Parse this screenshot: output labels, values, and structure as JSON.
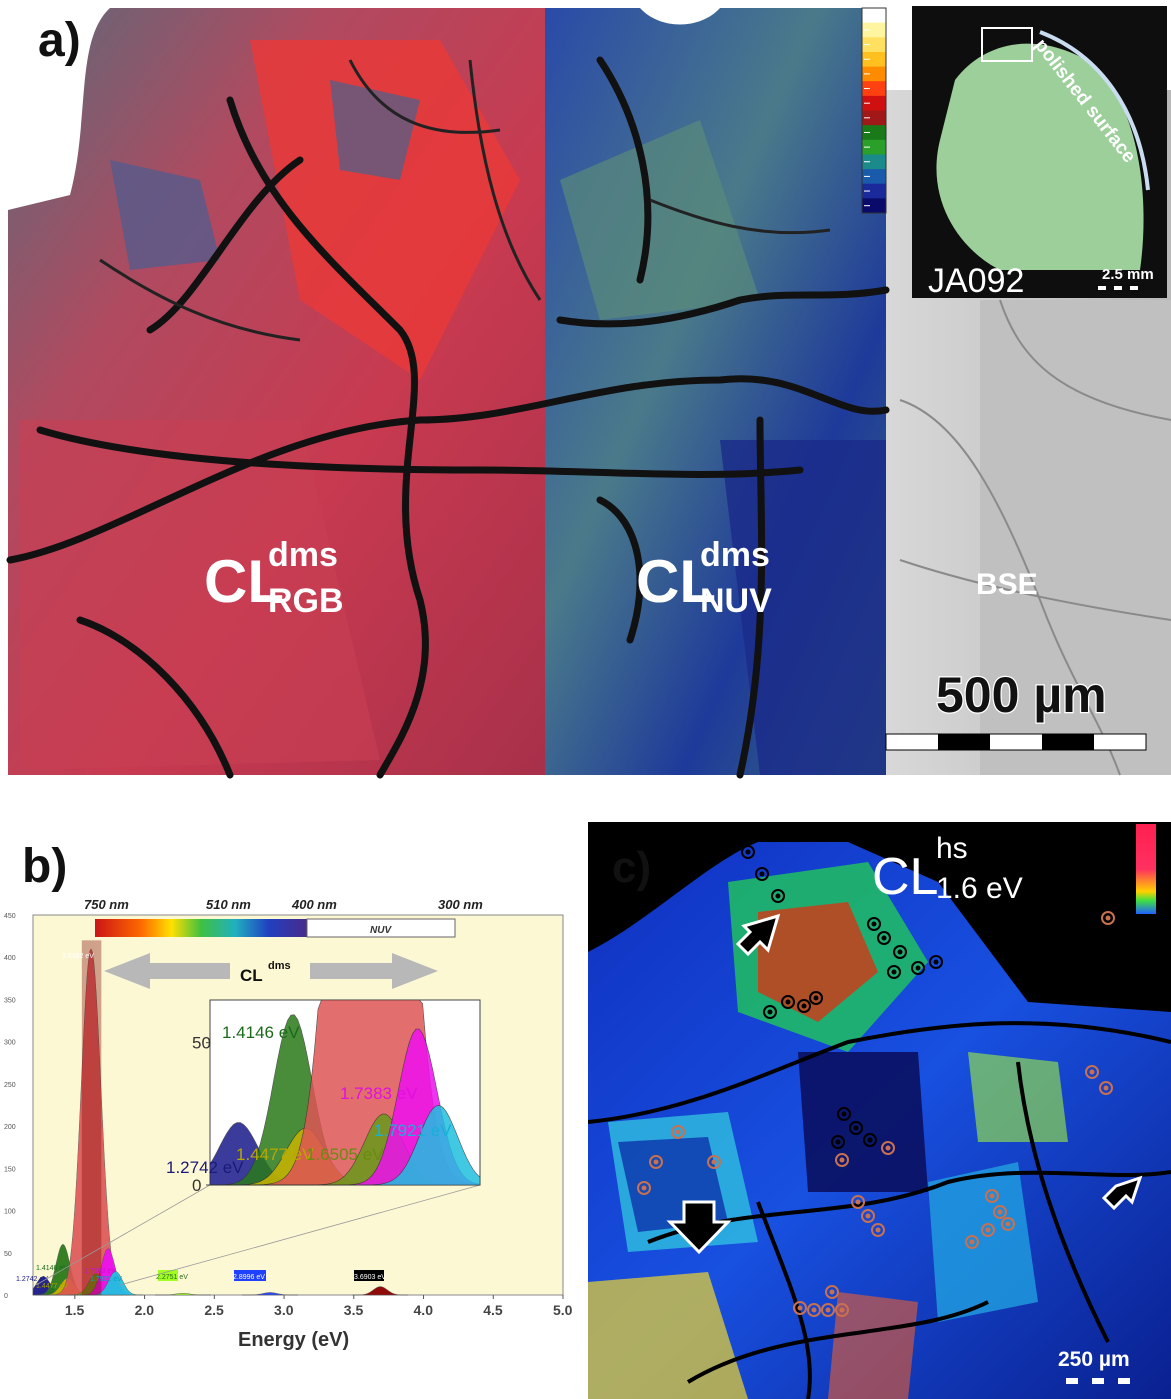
{
  "panel_a": {
    "letter": "a)",
    "cl_rgb": {
      "main": "CL",
      "sup": "dms",
      "sub": "RGB"
    },
    "cl_nuv": {
      "main": "CL",
      "sup": "dms",
      "sub": "NUV"
    },
    "bse_label": "BSE",
    "scale_label": "500 µm",
    "inset": {
      "sample": "JA092",
      "scale": "2.5 mm",
      "annotation": "polished surface"
    },
    "colorbar": [
      "#ffffff",
      "#fff5a0",
      "#ffe060",
      "#ffc020",
      "#ff8c00",
      "#ff4010",
      "#d01010",
      "#a01818",
      "#1a7a1a",
      "#2aa02a",
      "#1a8a8a",
      "#1a5aaa",
      "#1a2a9a",
      "#0a0a6a"
    ]
  },
  "panel_b": {
    "letter": "b)",
    "wavelength_labels": [
      "750 nm",
      "510 nm",
      "400 nm",
      "300 nm"
    ],
    "nuv_label": "NUV",
    "cl_main": "CL",
    "cl_sup": "dms",
    "inset_labels": [
      "1.4146 eV",
      "1.7383 eV",
      "1.7921 eV",
      "1.4477 eV",
      "1.6505 eV",
      "1.2742 eV"
    ],
    "main_peak_label": "1.6162 eV",
    "small_labels": [
      "1.4146 eV",
      "1.4477 eV",
      "1.2742 eV",
      "1.7383 eV",
      "1.7921 eV",
      "2.2751 eV",
      "2.8996 eV",
      "3.6903 eV"
    ]
  },
  "chart_data": {
    "type": "area",
    "xlabel": "Energy (eV)",
    "ylabel": "",
    "xlim": [
      1.2,
      5.0
    ],
    "ylim": [
      0,
      450
    ],
    "xticks": [
      1.5,
      2.0,
      2.5,
      3.0,
      3.5,
      4.0,
      4.5,
      5.0
    ],
    "yticks": [
      0,
      50,
      100,
      150,
      200,
      250,
      300,
      350,
      400,
      450
    ],
    "inset": {
      "yticks": [
        0,
        50
      ]
    },
    "series": [
      {
        "name": "1.2742 eV",
        "center": 1.2742,
        "amplitude": 22,
        "color": "#1a1a8a"
      },
      {
        "name": "1.4146 eV",
        "center": 1.4146,
        "amplitude": 60,
        "color": "#2a7a1a"
      },
      {
        "name": "1.4477 eV",
        "center": 1.4477,
        "amplitude": 20,
        "color": "#c8b400"
      },
      {
        "name": "1.6162 eV",
        "center": 1.6162,
        "amplitude": 410,
        "color": "#dd5555"
      },
      {
        "name": "1.6505 eV",
        "center": 1.6505,
        "amplitude": 25,
        "color": "#6a9a1a"
      },
      {
        "name": "1.7383 eV",
        "center": 1.7383,
        "amplitude": 55,
        "color": "#ee10ee"
      },
      {
        "name": "1.7921 eV",
        "center": 1.7921,
        "amplitude": 28,
        "color": "#20c0e0"
      },
      {
        "name": "2.2751 eV",
        "center": 2.2751,
        "amplitude": 2,
        "color": "#a0ff20"
      },
      {
        "name": "2.8996 eV",
        "center": 2.8996,
        "amplitude": 3,
        "color": "#2040ff"
      },
      {
        "name": "3.6903 eV",
        "center": 3.6903,
        "amplitude": 10,
        "color": "#8b0000"
      }
    ]
  },
  "panel_c": {
    "letter": "c)",
    "cl_main": "CL",
    "cl_sup": "hs",
    "cl_sub": "1.6 eV",
    "scale_label": "250 µm"
  }
}
